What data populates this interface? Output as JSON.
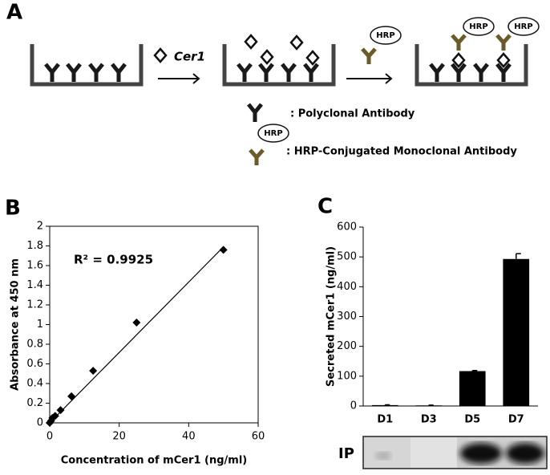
{
  "panels": {
    "a": "A",
    "b": "B",
    "c": "C"
  },
  "diagram": {
    "analyte": "Cer1",
    "hrp_label": "HRP",
    "legend_polyclonal": ": Polyclonal Antibody",
    "legend_hrp": ": HRP-Conjugated Monoclonal Antibody"
  },
  "blot": {
    "label": "IP"
  },
  "chart_data": [
    {
      "type": "scatter",
      "x_label": "Concentration of mCer1 (ng/ml)",
      "y_label": "Absorbance at 450 nm",
      "annotation": "R² = 0.9925",
      "x": [
        0,
        0.39,
        0.78,
        1.56,
        3.125,
        6.25,
        12.5,
        25,
        50
      ],
      "y": [
        0,
        0.02,
        0.05,
        0.07,
        0.13,
        0.27,
        0.53,
        1.02,
        1.76
      ],
      "trendline": {
        "x": [
          0,
          50
        ],
        "y": [
          0,
          1.79
        ]
      },
      "color": "#000000",
      "xlim": [
        0,
        60
      ],
      "xticks": [
        0,
        20,
        40,
        60
      ],
      "ylim": [
        0,
        2
      ],
      "yticks": [
        0,
        0.2,
        0.4,
        0.6,
        0.8,
        1,
        1.2,
        1.4,
        1.6,
        1.8,
        2
      ],
      "grid": false
    },
    {
      "type": "bar",
      "y_label": "Secreted mCer1 (ng/ml)",
      "categories": [
        "D1",
        "D3",
        "D5",
        "D7"
      ],
      "values": [
        3,
        2,
        117,
        493
      ],
      "errors": [
        1,
        1,
        2,
        18
      ],
      "color": "#000000",
      "ylim": [
        0,
        600
      ],
      "yticks": [
        0,
        100,
        200,
        300,
        400,
        500,
        600
      ],
      "grid": false
    }
  ]
}
